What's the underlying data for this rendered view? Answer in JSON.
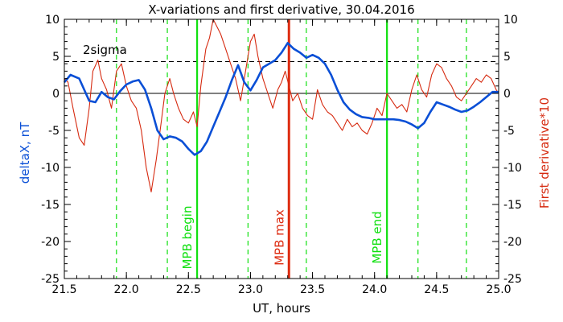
{
  "chart_data": {
    "type": "line",
    "title": "X-variations and first derivative, 30.04.2016",
    "xlabel": "UT, hours",
    "ylabel_left": "deltaX, nT",
    "ylabel_right": "First derivative*10",
    "xlim": [
      21.5,
      25.0
    ],
    "ylim": [
      -25,
      10
    ],
    "x_ticks": [
      "21.5",
      "22.0",
      "22.5",
      "23.0",
      "23.5",
      "24.0",
      "24.5",
      "25.0"
    ],
    "y_ticks": [
      "10",
      "5",
      "0",
      "-5",
      "-10",
      "-15",
      "-20",
      "-25"
    ],
    "sigma_label": "2sigma",
    "sigma_level": 4.3,
    "zero_line": 0,
    "colors": {
      "deltaX": "#0a4fd6",
      "derivative": "#d62a10",
      "markers": "#10e010",
      "mpb_max": "#dd2b10",
      "axis": "#000000"
    },
    "markers": [
      {
        "label": "MPB begin",
        "x": 22.57
      },
      {
        "label": "MPB max",
        "x": 23.31
      },
      {
        "label": "MPB end",
        "x": 24.1
      }
    ],
    "dashed_verticals": [
      21.92,
      22.33,
      22.98,
      23.45,
      24.35,
      24.74
    ],
    "series": [
      {
        "name": "deltaX, nT",
        "x": [
          21.5,
          21.55,
          21.62,
          21.7,
          21.75,
          21.8,
          21.85,
          21.9,
          21.95,
          22.0,
          22.05,
          22.1,
          22.15,
          22.2,
          22.25,
          22.3,
          22.35,
          22.4,
          22.45,
          22.5,
          22.55,
          22.6,
          22.65,
          22.7,
          22.75,
          22.8,
          22.85,
          22.9,
          22.95,
          23.0,
          23.05,
          23.1,
          23.15,
          23.2,
          23.25,
          23.3,
          23.35,
          23.4,
          23.45,
          23.5,
          23.55,
          23.6,
          23.65,
          23.7,
          23.75,
          23.8,
          23.85,
          23.9,
          23.95,
          24.0,
          24.05,
          24.1,
          24.15,
          24.2,
          24.25,
          24.3,
          24.35,
          24.4,
          24.45,
          24.5,
          24.55,
          24.6,
          24.65,
          24.7,
          24.75,
          24.8,
          24.85,
          24.9,
          24.95,
          25.0
        ],
        "values": [
          1.5,
          2.5,
          2.0,
          -1.0,
          -1.2,
          0.2,
          -0.5,
          -0.8,
          0.3,
          1.2,
          1.6,
          1.8,
          0.5,
          -2.0,
          -5.0,
          -6.2,
          -5.8,
          -6.0,
          -6.5,
          -7.5,
          -8.3,
          -7.8,
          -6.5,
          -4.5,
          -2.5,
          -0.5,
          1.8,
          3.8,
          1.5,
          0.4,
          1.8,
          3.5,
          4.0,
          4.5,
          5.5,
          6.8,
          6.0,
          5.5,
          4.8,
          5.2,
          4.8,
          4.0,
          2.5,
          0.5,
          -1.2,
          -2.2,
          -2.8,
          -3.2,
          -3.3,
          -3.5,
          -3.5,
          -3.5,
          -3.5,
          -3.6,
          -3.8,
          -4.2,
          -4.7,
          -4.0,
          -2.5,
          -1.2,
          -1.5,
          -1.8,
          -2.2,
          -2.5,
          -2.3,
          -1.8,
          -1.2,
          -0.5,
          0.2,
          0.2
        ]
      },
      {
        "name": "First derivative*10",
        "x": [
          21.5,
          21.53,
          21.57,
          21.62,
          21.66,
          21.7,
          21.73,
          21.77,
          21.8,
          21.84,
          21.88,
          21.92,
          21.96,
          22.0,
          22.04,
          22.08,
          22.12,
          22.16,
          22.2,
          22.24,
          22.28,
          22.31,
          22.35,
          22.38,
          22.42,
          22.46,
          22.5,
          22.54,
          22.57,
          22.6,
          22.64,
          22.67,
          22.7,
          22.73,
          22.76,
          22.8,
          22.84,
          22.88,
          22.92,
          22.96,
          23.0,
          23.03,
          23.06,
          23.1,
          23.14,
          23.18,
          23.22,
          23.25,
          23.28,
          23.31,
          23.34,
          23.38,
          23.42,
          23.46,
          23.5,
          23.54,
          23.58,
          23.62,
          23.66,
          23.7,
          23.74,
          23.78,
          23.82,
          23.86,
          23.9,
          23.94,
          23.98,
          24.02,
          24.06,
          24.1,
          24.14,
          24.18,
          24.22,
          24.26,
          24.3,
          24.34,
          24.38,
          24.42,
          24.46,
          24.5,
          24.54,
          24.58,
          24.62,
          24.66,
          24.7,
          24.74,
          24.78,
          24.82,
          24.86,
          24.9,
          24.94,
          24.98,
          25.0
        ],
        "values": [
          2.0,
          1.5,
          -2.0,
          -6.0,
          -7.0,
          -2.0,
          3.0,
          4.5,
          2.0,
          0.5,
          -2.0,
          3.0,
          4.0,
          1.0,
          -1.0,
          -2.0,
          -5.0,
          -10.0,
          -13.3,
          -9.0,
          -4.0,
          0.0,
          2.0,
          0.0,
          -2.0,
          -3.5,
          -4.0,
          -2.5,
          -4.5,
          1.0,
          6.0,
          7.5,
          10.0,
          9.0,
          8.0,
          6.0,
          4.0,
          2.0,
          -1.0,
          3.0,
          7.0,
          8.0,
          5.0,
          2.0,
          0.0,
          -2.0,
          0.5,
          1.5,
          3.0,
          1.0,
          -1.0,
          0.0,
          -2.0,
          -3.0,
          -3.5,
          0.5,
          -1.5,
          -2.5,
          -3.0,
          -4.0,
          -5.0,
          -3.5,
          -4.5,
          -4.0,
          -5.0,
          -5.5,
          -4.0,
          -2.0,
          -3.0,
          0.0,
          -1.0,
          -2.0,
          -1.5,
          -2.5,
          0.5,
          2.5,
          0.5,
          -0.5,
          2.5,
          4.0,
          3.5,
          2.0,
          1.0,
          -0.5,
          -1.0,
          0.0,
          1.0,
          2.0,
          1.5,
          2.5,
          2.0,
          0.5,
          0.0
        ]
      }
    ]
  }
}
